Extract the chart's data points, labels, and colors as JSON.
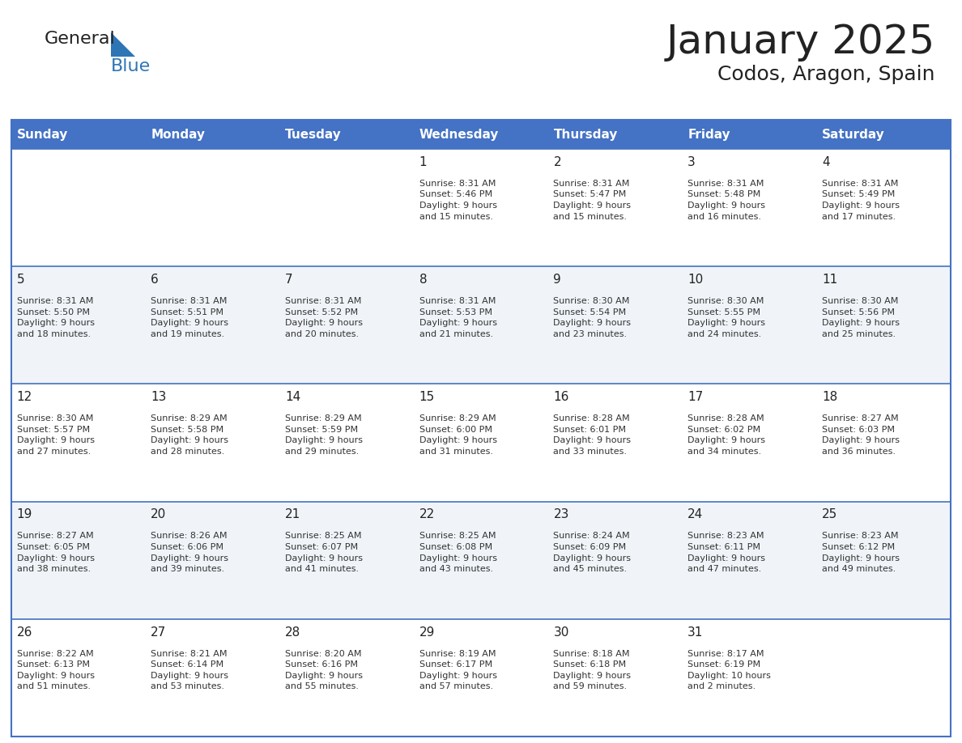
{
  "title": "January 2025",
  "subtitle": "Codos, Aragon, Spain",
  "days_of_week": [
    "Sunday",
    "Monday",
    "Tuesday",
    "Wednesday",
    "Thursday",
    "Friday",
    "Saturday"
  ],
  "header_bg": "#4472C4",
  "header_text": "#FFFFFF",
  "row_bg_odd": "#FFFFFF",
  "row_bg_even": "#F0F4F8",
  "cell_border": "#4472C4",
  "day_number_color": "#222222",
  "text_color": "#333333",
  "title_color": "#222222",
  "logo_black": "#222222",
  "logo_blue": "#2E75B6",
  "triangle_color": "#2E75B6",
  "calendar_data": [
    [
      {
        "day": "",
        "info": ""
      },
      {
        "day": "",
        "info": ""
      },
      {
        "day": "",
        "info": ""
      },
      {
        "day": "1",
        "info": "Sunrise: 8:31 AM\nSunset: 5:46 PM\nDaylight: 9 hours\nand 15 minutes."
      },
      {
        "day": "2",
        "info": "Sunrise: 8:31 AM\nSunset: 5:47 PM\nDaylight: 9 hours\nand 15 minutes."
      },
      {
        "day": "3",
        "info": "Sunrise: 8:31 AM\nSunset: 5:48 PM\nDaylight: 9 hours\nand 16 minutes."
      },
      {
        "day": "4",
        "info": "Sunrise: 8:31 AM\nSunset: 5:49 PM\nDaylight: 9 hours\nand 17 minutes."
      }
    ],
    [
      {
        "day": "5",
        "info": "Sunrise: 8:31 AM\nSunset: 5:50 PM\nDaylight: 9 hours\nand 18 minutes."
      },
      {
        "day": "6",
        "info": "Sunrise: 8:31 AM\nSunset: 5:51 PM\nDaylight: 9 hours\nand 19 minutes."
      },
      {
        "day": "7",
        "info": "Sunrise: 8:31 AM\nSunset: 5:52 PM\nDaylight: 9 hours\nand 20 minutes."
      },
      {
        "day": "8",
        "info": "Sunrise: 8:31 AM\nSunset: 5:53 PM\nDaylight: 9 hours\nand 21 minutes."
      },
      {
        "day": "9",
        "info": "Sunrise: 8:30 AM\nSunset: 5:54 PM\nDaylight: 9 hours\nand 23 minutes."
      },
      {
        "day": "10",
        "info": "Sunrise: 8:30 AM\nSunset: 5:55 PM\nDaylight: 9 hours\nand 24 minutes."
      },
      {
        "day": "11",
        "info": "Sunrise: 8:30 AM\nSunset: 5:56 PM\nDaylight: 9 hours\nand 25 minutes."
      }
    ],
    [
      {
        "day": "12",
        "info": "Sunrise: 8:30 AM\nSunset: 5:57 PM\nDaylight: 9 hours\nand 27 minutes."
      },
      {
        "day": "13",
        "info": "Sunrise: 8:29 AM\nSunset: 5:58 PM\nDaylight: 9 hours\nand 28 minutes."
      },
      {
        "day": "14",
        "info": "Sunrise: 8:29 AM\nSunset: 5:59 PM\nDaylight: 9 hours\nand 29 minutes."
      },
      {
        "day": "15",
        "info": "Sunrise: 8:29 AM\nSunset: 6:00 PM\nDaylight: 9 hours\nand 31 minutes."
      },
      {
        "day": "16",
        "info": "Sunrise: 8:28 AM\nSunset: 6:01 PM\nDaylight: 9 hours\nand 33 minutes."
      },
      {
        "day": "17",
        "info": "Sunrise: 8:28 AM\nSunset: 6:02 PM\nDaylight: 9 hours\nand 34 minutes."
      },
      {
        "day": "18",
        "info": "Sunrise: 8:27 AM\nSunset: 6:03 PM\nDaylight: 9 hours\nand 36 minutes."
      }
    ],
    [
      {
        "day": "19",
        "info": "Sunrise: 8:27 AM\nSunset: 6:05 PM\nDaylight: 9 hours\nand 38 minutes."
      },
      {
        "day": "20",
        "info": "Sunrise: 8:26 AM\nSunset: 6:06 PM\nDaylight: 9 hours\nand 39 minutes."
      },
      {
        "day": "21",
        "info": "Sunrise: 8:25 AM\nSunset: 6:07 PM\nDaylight: 9 hours\nand 41 minutes."
      },
      {
        "day": "22",
        "info": "Sunrise: 8:25 AM\nSunset: 6:08 PM\nDaylight: 9 hours\nand 43 minutes."
      },
      {
        "day": "23",
        "info": "Sunrise: 8:24 AM\nSunset: 6:09 PM\nDaylight: 9 hours\nand 45 minutes."
      },
      {
        "day": "24",
        "info": "Sunrise: 8:23 AM\nSunset: 6:11 PM\nDaylight: 9 hours\nand 47 minutes."
      },
      {
        "day": "25",
        "info": "Sunrise: 8:23 AM\nSunset: 6:12 PM\nDaylight: 9 hours\nand 49 minutes."
      }
    ],
    [
      {
        "day": "26",
        "info": "Sunrise: 8:22 AM\nSunset: 6:13 PM\nDaylight: 9 hours\nand 51 minutes."
      },
      {
        "day": "27",
        "info": "Sunrise: 8:21 AM\nSunset: 6:14 PM\nDaylight: 9 hours\nand 53 minutes."
      },
      {
        "day": "28",
        "info": "Sunrise: 8:20 AM\nSunset: 6:16 PM\nDaylight: 9 hours\nand 55 minutes."
      },
      {
        "day": "29",
        "info": "Sunrise: 8:19 AM\nSunset: 6:17 PM\nDaylight: 9 hours\nand 57 minutes."
      },
      {
        "day": "30",
        "info": "Sunrise: 8:18 AM\nSunset: 6:18 PM\nDaylight: 9 hours\nand 59 minutes."
      },
      {
        "day": "31",
        "info": "Sunrise: 8:17 AM\nSunset: 6:19 PM\nDaylight: 10 hours\nand 2 minutes."
      },
      {
        "day": "",
        "info": ""
      }
    ]
  ]
}
